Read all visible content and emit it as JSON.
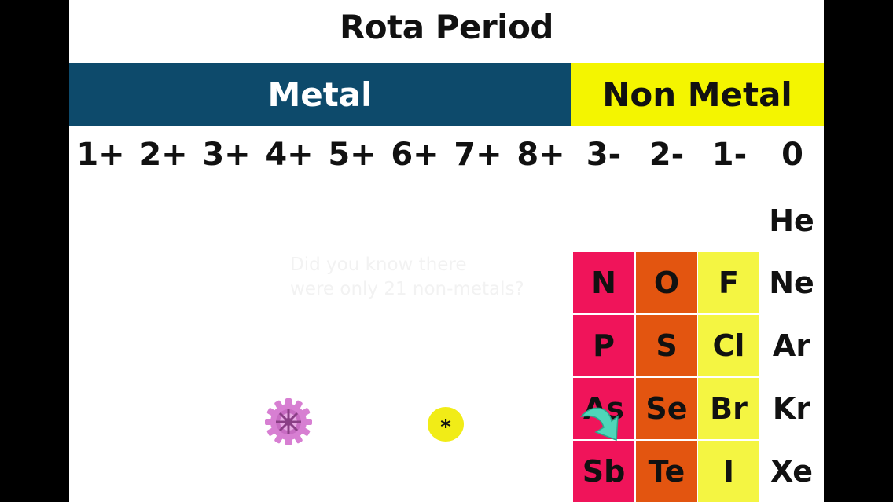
{
  "title": "Rota Period",
  "bands": {
    "metal": "Metal",
    "nonmetal": "Non Metal"
  },
  "charges": [
    "1+",
    "2+",
    "3+",
    "4+",
    "5+",
    "6+",
    "7+",
    "8+",
    "3-",
    "2-",
    "1-",
    "0"
  ],
  "tip": {
    "line1": "Did you know there",
    "line2": "were only 21 non-metals?"
  },
  "elements": {
    "he": "He",
    "n": "N",
    "o": "O",
    "f": "F",
    "ne": "Ne",
    "p": "P",
    "s": "S",
    "cl": "Cl",
    "ar": "Ar",
    "as": "As",
    "se": "Se",
    "br": "Br",
    "kr": "Kr",
    "sb": "Sb",
    "te": "Te",
    "i": "I",
    "xe": "Xe"
  },
  "buttons": {
    "star_label": "*"
  },
  "icons": {
    "gear": "gear-icon",
    "star": "star-icon",
    "arrow": "curved-arrow-icon"
  },
  "colors": {
    "metal_band": "#0d4a6b",
    "nonmetal_band": "#f4f500",
    "group15": "#f0145a",
    "group16": "#e35510",
    "group17": "#f4f542",
    "star_button": "#f1ec17",
    "gear": "#d77fd2",
    "arrow": "#4fd6b9"
  }
}
